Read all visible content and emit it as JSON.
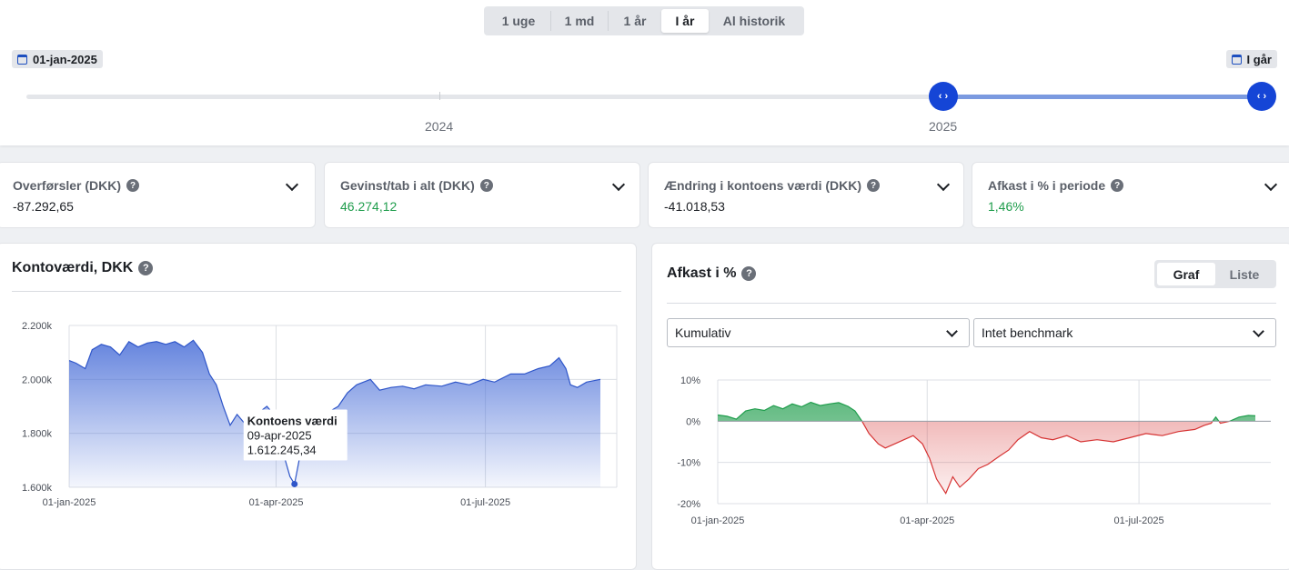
{
  "range_tabs": [
    {
      "label": "1 uge",
      "active": false
    },
    {
      "label": "1 md",
      "active": false
    },
    {
      "label": "1 år",
      "active": false
    },
    {
      "label": "I år",
      "active": true
    },
    {
      "label": "Al historik",
      "active": false
    }
  ],
  "timeline": {
    "start_date": "01-jan-2025",
    "end_date": "I går",
    "year_labels": [
      "2024",
      "2025"
    ],
    "handle_icon": "chevrons-left-right-icon"
  },
  "kpis": [
    {
      "label": "Overførsler (DKK)",
      "value": "-87.292,65",
      "tone": "neutral"
    },
    {
      "label": "Gevinst/tab i alt (DKK)",
      "value": "46.274,12",
      "tone": "positive"
    },
    {
      "label": "Ændring i kontoens værdi (DKK)",
      "value": "-41.018,53",
      "tone": "neutral"
    },
    {
      "label": "Afkast i % i periode",
      "value": "1,46%",
      "tone": "positive"
    }
  ],
  "help_icon": "?",
  "account_chart": {
    "title": "Kontoværdi, DKK",
    "tooltip": {
      "title": "Kontoens værdi",
      "date": "09-apr-2025",
      "value": "1.612.245,34"
    }
  },
  "return_chart": {
    "title": "Afkast i %",
    "toggle": [
      {
        "label": "Graf",
        "active": true
      },
      {
        "label": "Liste",
        "active": false
      }
    ],
    "mode_select": "Kumulativ",
    "benchmark_select": "Intet benchmark"
  },
  "colors": {
    "accent": "#1545d6",
    "positive": "#1f9d4c",
    "negative": "#d63333",
    "area_blue": "#4a6fd8"
  },
  "chart_data": [
    {
      "type": "area",
      "title": "",
      "x_ticks": [
        "01-jan-2025",
        "01-apr-2025",
        "01-jul-2025"
      ],
      "y_ticks": [
        "2.200k",
        "2.000k",
        "1.800k",
        "1.600k"
      ],
      "ylim": [
        1600000,
        2200000
      ],
      "x_range": [
        "2025-01-01",
        "2025-08-20"
      ],
      "grid": true,
      "series": [
        {
          "points": [
            [
              "2025-01-01",
              2070000
            ],
            [
              "2025-01-04",
              2060000
            ],
            [
              "2025-01-08",
              2040000
            ],
            [
              "2025-01-11",
              2110000
            ],
            [
              "2025-01-15",
              2130000
            ],
            [
              "2025-01-19",
              2120000
            ],
            [
              "2025-01-23",
              2090000
            ],
            [
              "2025-01-27",
              2140000
            ],
            [
              "2025-01-31",
              2120000
            ],
            [
              "2025-02-04",
              2135000
            ],
            [
              "2025-02-08",
              2140000
            ],
            [
              "2025-02-12",
              2130000
            ],
            [
              "2025-02-16",
              2140000
            ],
            [
              "2025-02-20",
              2120000
            ],
            [
              "2025-02-24",
              2145000
            ],
            [
              "2025-02-28",
              2100000
            ],
            [
              "2025-03-03",
              2020000
            ],
            [
              "2025-03-06",
              1980000
            ],
            [
              "2025-03-09",
              1900000
            ],
            [
              "2025-03-12",
              1830000
            ],
            [
              "2025-03-15",
              1870000
            ],
            [
              "2025-03-18",
              1840000
            ],
            [
              "2025-03-21",
              1860000
            ],
            [
              "2025-03-25",
              1880000
            ],
            [
              "2025-03-28",
              1900000
            ],
            [
              "2025-03-31",
              1870000
            ],
            [
              "2025-04-03",
              1760000
            ],
            [
              "2025-04-07",
              1640000
            ],
            [
              "2025-04-09",
              1612000
            ],
            [
              "2025-04-11",
              1700000
            ],
            [
              "2025-04-14",
              1760000
            ],
            [
              "2025-04-17",
              1800000
            ],
            [
              "2025-04-21",
              1830000
            ],
            [
              "2025-04-24",
              1880000
            ],
            [
              "2025-04-28",
              1900000
            ],
            [
              "2025-05-02",
              1950000
            ],
            [
              "2025-05-06",
              1980000
            ],
            [
              "2025-05-12",
              2000000
            ],
            [
              "2025-05-16",
              1960000
            ],
            [
              "2025-05-21",
              1970000
            ],
            [
              "2025-05-26",
              1975000
            ],
            [
              "2025-05-31",
              1965000
            ],
            [
              "2025-06-05",
              1980000
            ],
            [
              "2025-06-12",
              1975000
            ],
            [
              "2025-06-18",
              1990000
            ],
            [
              "2025-06-24",
              1980000
            ],
            [
              "2025-06-30",
              2000000
            ],
            [
              "2025-07-05",
              1990000
            ],
            [
              "2025-07-12",
              2020000
            ],
            [
              "2025-07-18",
              2020000
            ],
            [
              "2025-07-24",
              2040000
            ],
            [
              "2025-07-29",
              2050000
            ],
            [
              "2025-08-02",
              2080000
            ],
            [
              "2025-08-05",
              2040000
            ],
            [
              "2025-08-07",
              1980000
            ],
            [
              "2025-08-10",
              1970000
            ],
            [
              "2025-08-14",
              1990000
            ],
            [
              "2025-08-20",
              2000000
            ]
          ]
        }
      ]
    },
    {
      "type": "area",
      "title": "",
      "x_ticks": [
        "01-jan-2025",
        "01-apr-2025",
        "01-jul-2025"
      ],
      "y_ticks": [
        "10%",
        "0%",
        "-10%",
        "-20%"
      ],
      "ylim": [
        -20,
        10
      ],
      "x_range": [
        "2025-01-01",
        "2025-08-20"
      ],
      "baseline": 0,
      "grid": true,
      "series": [
        {
          "points": [
            [
              "2025-01-01",
              1.5
            ],
            [
              "2025-01-05",
              1.2
            ],
            [
              "2025-01-09",
              0.5
            ],
            [
              "2025-01-13",
              2.5
            ],
            [
              "2025-01-17",
              3.0
            ],
            [
              "2025-01-21",
              2.6
            ],
            [
              "2025-01-25",
              3.8
            ],
            [
              "2025-01-29",
              3.0
            ],
            [
              "2025-02-02",
              4.2
            ],
            [
              "2025-02-06",
              3.5
            ],
            [
              "2025-02-10",
              4.6
            ],
            [
              "2025-02-14",
              3.8
            ],
            [
              "2025-02-18",
              4.2
            ],
            [
              "2025-02-22",
              4.5
            ],
            [
              "2025-02-26",
              3.6
            ],
            [
              "2025-03-01",
              2.5
            ],
            [
              "2025-03-04",
              0
            ],
            [
              "2025-03-07",
              -3
            ],
            [
              "2025-03-11",
              -5.5
            ],
            [
              "2025-03-14",
              -6.5
            ],
            [
              "2025-03-18",
              -5.5
            ],
            [
              "2025-03-22",
              -4.5
            ],
            [
              "2025-03-26",
              -3.5
            ],
            [
              "2025-03-30",
              -5.5
            ],
            [
              "2025-04-02",
              -9
            ],
            [
              "2025-04-05",
              -14
            ],
            [
              "2025-04-09",
              -17.5
            ],
            [
              "2025-04-12",
              -13.5
            ],
            [
              "2025-04-15",
              -16
            ],
            [
              "2025-04-19",
              -14
            ],
            [
              "2025-04-23",
              -11.5
            ],
            [
              "2025-04-27",
              -10.5
            ],
            [
              "2025-05-02",
              -8.5
            ],
            [
              "2025-05-06",
              -7
            ],
            [
              "2025-05-10",
              -4.5
            ],
            [
              "2025-05-15",
              -2.5
            ],
            [
              "2025-05-20",
              -4
            ],
            [
              "2025-05-25",
              -4.5
            ],
            [
              "2025-05-31",
              -3.5
            ],
            [
              "2025-06-06",
              -5
            ],
            [
              "2025-06-13",
              -4.5
            ],
            [
              "2025-06-20",
              -5
            ],
            [
              "2025-06-27",
              -4
            ],
            [
              "2025-07-04",
              -3
            ],
            [
              "2025-07-11",
              -3.5
            ],
            [
              "2025-07-18",
              -2.5
            ],
            [
              "2025-07-25",
              -2
            ],
            [
              "2025-07-29",
              -1
            ],
            [
              "2025-08-01",
              -0.5
            ],
            [
              "2025-08-03",
              1
            ],
            [
              "2025-08-05",
              -0.5
            ],
            [
              "2025-08-09",
              0
            ],
            [
              "2025-08-13",
              1
            ],
            [
              "2025-08-17",
              1.4
            ],
            [
              "2025-08-20",
              1.3
            ]
          ]
        }
      ]
    }
  ]
}
